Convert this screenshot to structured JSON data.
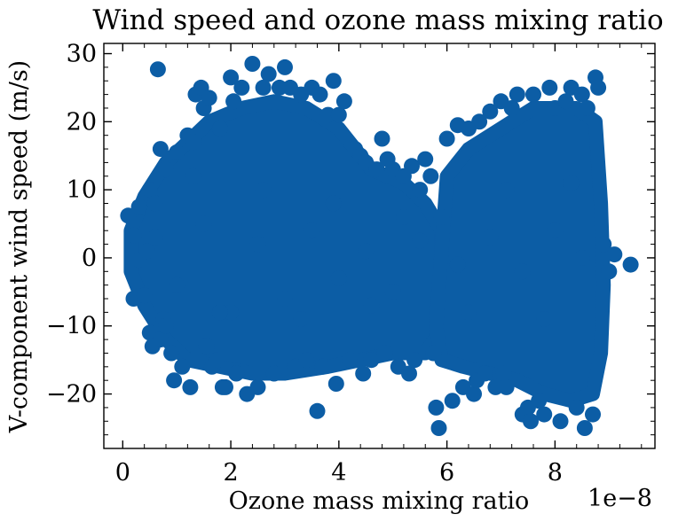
{
  "chart_data": {
    "type": "scatter",
    "title": "Wind speed and ozone mass mixing ratio",
    "xlabel": "Ozone mass mixing ratio",
    "ylabel": "V-component wind speed (m/s)",
    "x_offset_label": "1e−8",
    "xlim": [
      -0.35,
      9.85
    ],
    "ylim": [
      -28,
      31.5
    ],
    "x_ticks": [
      0,
      2,
      4,
      6,
      8
    ],
    "x_tick_labels": [
      "0",
      "2",
      "4",
      "6",
      "8"
    ],
    "y_ticks": [
      30,
      20,
      10,
      0,
      -10,
      -20
    ],
    "y_tick_labels": [
      "30",
      "20",
      "10",
      "0",
      "−10",
      "−20"
    ],
    "grid": false,
    "color": "#0c5da5",
    "series": [
      {
        "x": [
          0.1,
          0.2,
          0.2,
          0.3,
          0.3,
          0.4,
          0.45,
          0.5,
          0.5,
          0.55,
          0.6,
          0.65,
          0.7,
          0.7,
          0.75,
          0.8,
          0.9,
          0.95,
          1.0,
          1.1,
          1.2,
          1.25,
          1.3,
          1.35,
          1.4,
          1.45,
          1.5,
          1.55,
          1.6,
          1.65,
          1.7,
          1.75,
          1.8,
          1.85,
          1.9,
          2.0,
          2.05,
          2.1,
          2.2,
          2.3,
          2.4,
          2.5,
          2.6,
          2.7,
          2.8,
          2.9,
          3.0,
          3.1,
          3.2,
          3.3,
          3.4,
          3.5,
          3.6,
          3.65,
          3.7,
          3.8,
          3.9,
          3.95,
          4.0,
          4.1,
          4.2,
          4.3,
          4.4,
          4.45,
          4.5,
          4.6,
          4.7,
          4.8,
          4.85,
          4.9,
          5.0,
          5.1,
          5.2,
          5.3,
          5.35,
          5.4,
          5.5,
          5.6,
          5.7,
          5.75,
          5.8,
          5.85,
          5.9,
          6.0,
          6.1,
          6.2,
          6.3,
          6.4,
          6.5,
          6.55,
          6.6,
          6.7,
          6.8,
          6.9,
          7.0,
          7.05,
          7.1,
          7.2,
          7.3,
          7.4,
          7.5,
          7.55,
          7.6,
          7.7,
          7.8,
          7.9,
          8.0,
          8.1,
          8.2,
          8.3,
          8.4,
          8.5,
          8.55,
          8.6,
          8.7,
          8.75,
          8.8,
          8.9,
          9.0,
          9.1,
          9.4,
          0.6,
          1.0,
          1.5,
          2.0,
          2.5,
          3.0,
          3.5,
          4.0,
          4.5,
          5.0,
          5.5,
          6.2,
          6.8,
          7.4,
          8.0,
          8.5,
          0.8,
          1.3,
          1.8,
          2.6,
          3.3,
          3.9,
          4.6,
          5.2,
          6.4,
          7.1,
          7.8,
          8.3
        ],
        "y": [
          6.2,
          3.3,
          -6.0,
          -0.3,
          7.5,
          -5.5,
          1.0,
          10.0,
          -11.0,
          -13.0,
          8.0,
          27.7,
          16.0,
          -12.0,
          -9.0,
          13.0,
          -14.0,
          -18.0,
          15.5,
          -16.0,
          18.0,
          -19.0,
          17.0,
          24.0,
          -14.0,
          25.0,
          22.0,
          -13.0,
          23.5,
          -16.0,
          20.0,
          -15.0,
          19.0,
          -19.0,
          -19.0,
          26.5,
          23.0,
          -17.0,
          25.0,
          -20.0,
          28.5,
          -19.0,
          25.0,
          27.0,
          -17.0,
          25.0,
          28.0,
          25.0,
          -16.0,
          24.0,
          -15.0,
          25.0,
          -22.5,
          24.0,
          -16.0,
          21.0,
          26.0,
          -18.5,
          21.0,
          23.0,
          -15.0,
          16.0,
          15.0,
          -17.0,
          14.0,
          -15.0,
          13.0,
          17.5,
          -14.0,
          14.5,
          13.0,
          -16.0,
          12.0,
          -17.0,
          13.5,
          -15.0,
          10.0,
          14.5,
          12.0,
          -14.0,
          -22.0,
          -25.0,
          6.0,
          17.5,
          -21.0,
          19.5,
          -19.0,
          19.0,
          -20.0,
          -18.0,
          20.0,
          -17.0,
          21.5,
          -19.0,
          23.0,
          -17.0,
          -19.0,
          22.0,
          24.0,
          -23.0,
          -22.0,
          -24.0,
          24.0,
          -21.0,
          -23.0,
          25.0,
          22.0,
          -24.0,
          23.0,
          25.0,
          -22.0,
          24.0,
          -25.0,
          22.0,
          -23.0,
          26.5,
          25.0,
          2.0,
          -2.0,
          0.5,
          -1.0,
          3.0,
          -4.0,
          5.0,
          -8.0,
          2.0,
          -6.0,
          4.0,
          -3.0,
          1.0,
          -5.0,
          2.5,
          -1.0,
          3.0,
          -2.0,
          4.0,
          0.0,
          -10.0,
          12.0,
          -8.0,
          10.0,
          -9.0,
          8.0,
          -7.0,
          6.0,
          -8.0,
          10.0,
          -9.0,
          11.0
        ]
      }
    ]
  }
}
